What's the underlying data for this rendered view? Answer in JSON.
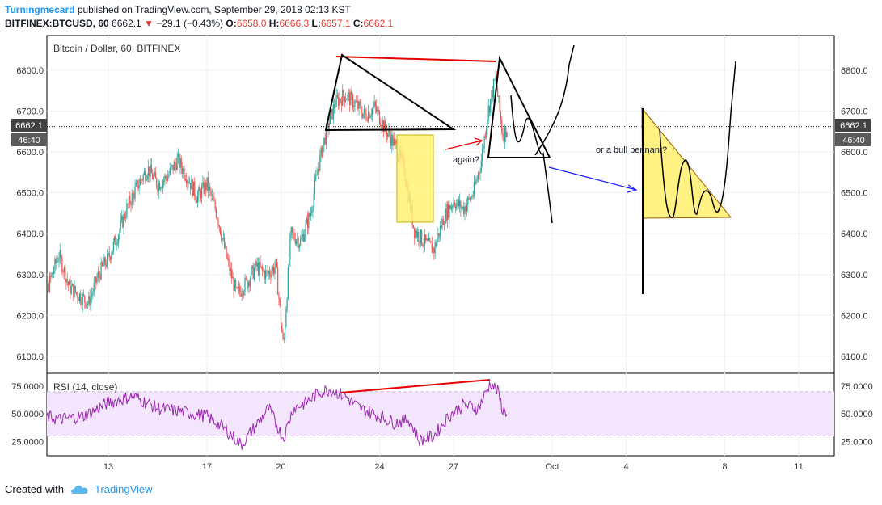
{
  "header": {
    "author": "Turningmecard",
    "published": "published on TradingView.com, September 29, 2018 02:13 KST",
    "symbol": "BITFINEX:BTCUSD, 60",
    "last": "6662.1",
    "change_arrow": "▼",
    "change": "−29.1 (−0.43%)",
    "o_label": "O:",
    "o": "6658.0",
    "h_label": "H:",
    "h": "6666.3",
    "l_label": "L:",
    "l": "6657.1",
    "c_label": "C:",
    "c": "6662.1"
  },
  "footer": {
    "created_with": "Created with",
    "brand": "TradingView",
    "logo_icon": "tradingview-cloud-icon"
  },
  "colors": {
    "up": "#26a69a",
    "down": "#ef5350",
    "rsi": "#9c27b0",
    "rsi_band": "#f3e5fc",
    "annotation_red": "#e50000",
    "annotation_blue": "#1a1aff",
    "highlight": "#fff176"
  },
  "chart_data": [
    {
      "type": "candlestick",
      "title": "Bitcoin / Dollar, 60, BITFINEX",
      "ylim": [
        6060,
        6890
      ],
      "y_ticks": [
        "6800.0",
        "6700.0",
        "6600.0",
        "6500.0",
        "6400.0",
        "6300.0",
        "6200.0",
        "6100.0"
      ],
      "y_tick_values": [
        6800,
        6700,
        6600,
        6500,
        6400,
        6300,
        6200,
        6100
      ],
      "x_ticks": [
        "13",
        "17",
        "20",
        "24",
        "27",
        "Oct",
        "4",
        "8",
        "11"
      ],
      "last_price": "6662.1",
      "countdown": "46:40",
      "approx_close_path": [
        [
          10,
          6300
        ],
        [
          10.5,
          6260
        ],
        [
          11,
          6350
        ],
        [
          11.4,
          6270
        ],
        [
          11.8,
          6250
        ],
        [
          12.2,
          6230
        ],
        [
          12.6,
          6300
        ],
        [
          13,
          6340
        ],
        [
          13.4,
          6400
        ],
        [
          13.8,
          6470
        ],
        [
          14.2,
          6520
        ],
        [
          14.6,
          6560
        ],
        [
          15,
          6520
        ],
        [
          15.4,
          6540
        ],
        [
          15.8,
          6580
        ],
        [
          16.2,
          6540
        ],
        [
          16.6,
          6490
        ],
        [
          17,
          6520
        ],
        [
          17.4,
          6450
        ],
        [
          17.8,
          6340
        ],
        [
          18.2,
          6250
        ],
        [
          18.6,
          6280
        ],
        [
          19,
          6320
        ],
        [
          19.4,
          6300
        ],
        [
          19.8,
          6320
        ],
        [
          20.1,
          6120
        ],
        [
          20.4,
          6400
        ],
        [
          20.8,
          6380
        ],
        [
          21.2,
          6450
        ],
        [
          21.5,
          6560
        ],
        [
          21.8,
          6640
        ],
        [
          22.2,
          6720
        ],
        [
          22.6,
          6740
        ],
        [
          23,
          6720
        ],
        [
          23.4,
          6690
        ],
        [
          23.8,
          6710
        ],
        [
          24.2,
          6660
        ],
        [
          24.6,
          6620
        ],
        [
          25,
          6560
        ],
        [
          25.4,
          6410
        ],
        [
          25.8,
          6380
        ],
        [
          26.2,
          6360
        ],
        [
          26.6,
          6440
        ],
        [
          27,
          6480
        ],
        [
          27.4,
          6460
        ],
        [
          27.8,
          6500
        ],
        [
          28.1,
          6570
        ],
        [
          28.4,
          6700
        ],
        [
          28.7,
          6780
        ],
        [
          29.0,
          6640
        ],
        [
          29.2,
          6662
        ]
      ],
      "annotations": [
        "again?",
        "or a bull pennant?"
      ]
    },
    {
      "type": "line",
      "title": "RSI (14, close)",
      "ylim": [
        14,
        84
      ],
      "y_ticks": [
        "75.0000",
        "50.0000",
        "25.0000"
      ],
      "y_tick_values": [
        75,
        50,
        25
      ],
      "band": [
        30,
        70
      ],
      "approx_path": [
        [
          10,
          50
        ],
        [
          11,
          45
        ],
        [
          12,
          48
        ],
        [
          13,
          60
        ],
        [
          14,
          66
        ],
        [
          15,
          55
        ],
        [
          16,
          52
        ],
        [
          17,
          48
        ],
        [
          17.8,
          35
        ],
        [
          18.4,
          22
        ],
        [
          19,
          40
        ],
        [
          19.5,
          55
        ],
        [
          20.1,
          28
        ],
        [
          20.5,
          55
        ],
        [
          21,
          60
        ],
        [
          21.6,
          70
        ],
        [
          22,
          72
        ],
        [
          22.6,
          66
        ],
        [
          23.2,
          55
        ],
        [
          24,
          48
        ],
        [
          24.6,
          42
        ],
        [
          25.2,
          45
        ],
        [
          25.6,
          26
        ],
        [
          26.2,
          30
        ],
        [
          26.8,
          48
        ],
        [
          27.4,
          58
        ],
        [
          28,
          55
        ],
        [
          28.5,
          78
        ],
        [
          28.8,
          70
        ],
        [
          29.0,
          53
        ],
        [
          29.2,
          52
        ]
      ]
    }
  ]
}
